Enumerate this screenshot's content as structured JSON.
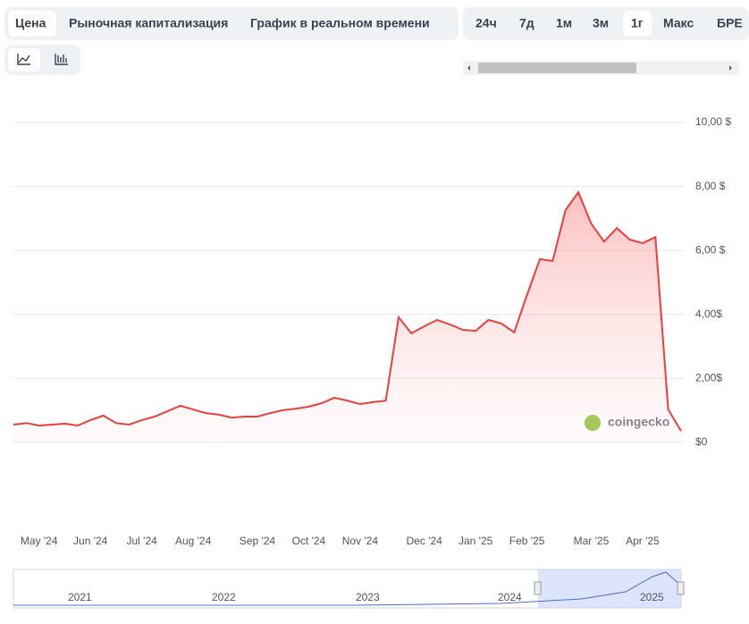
{
  "tabs": [
    "Цена",
    "Рыночная капитализация",
    "График в реальном времени"
  ],
  "ranges": [
    "24ч",
    "7д",
    "1м",
    "3м",
    "1г",
    "Макс",
    "БРЕ"
  ],
  "watermark": "coingecko",
  "navigator": {
    "labels": [
      "2021",
      "2022",
      "2023",
      "2024",
      "2025"
    ]
  },
  "chart_data": {
    "type": "line",
    "color": "#e8413d",
    "grid": true,
    "categories": [
      null,
      null,
      "May '24",
      null,
      null,
      null,
      "Jun '24",
      null,
      null,
      null,
      "Jul '24",
      null,
      null,
      null,
      "Aug '24",
      null,
      null,
      null,
      null,
      "Sep '24",
      null,
      null,
      null,
      "Oct '24",
      null,
      null,
      null,
      "Nov '24",
      null,
      null,
      null,
      null,
      "Dec '24",
      null,
      null,
      null,
      "Jan '25",
      null,
      null,
      null,
      "Feb '25",
      null,
      null,
      null,
      null,
      "Mar '25",
      null,
      null,
      null,
      "Apr '25",
      null,
      null,
      null
    ],
    "values": [
      0.56,
      0.61,
      0.53,
      0.56,
      0.59,
      0.53,
      0.7,
      0.84,
      0.61,
      0.56,
      0.7,
      0.81,
      0.98,
      1.15,
      1.03,
      0.92,
      0.87,
      0.78,
      0.81,
      0.81,
      0.92,
      1.01,
      1.06,
      1.12,
      1.23,
      1.4,
      1.31,
      1.2,
      1.26,
      1.31,
      3.91,
      3.41,
      3.63,
      3.83,
      3.69,
      3.52,
      3.49,
      3.83,
      3.72,
      3.44,
      4.61,
      5.73,
      5.67,
      7.26,
      7.82,
      6.84,
      6.28,
      6.7,
      6.34,
      6.23,
      6.42,
      1.03,
      0.36
    ],
    "ylim": [
      0,
      10
    ],
    "yticks": [
      {
        "value": 0,
        "label": "$0"
      },
      {
        "value": 2,
        "label": "2,00$"
      },
      {
        "value": 4,
        "label": "4,00$"
      },
      {
        "value": 6,
        "label": "6,00 $"
      },
      {
        "value": 8,
        "label": "8,00 $"
      },
      {
        "value": 10,
        "label": "10,00 $"
      }
    ]
  }
}
